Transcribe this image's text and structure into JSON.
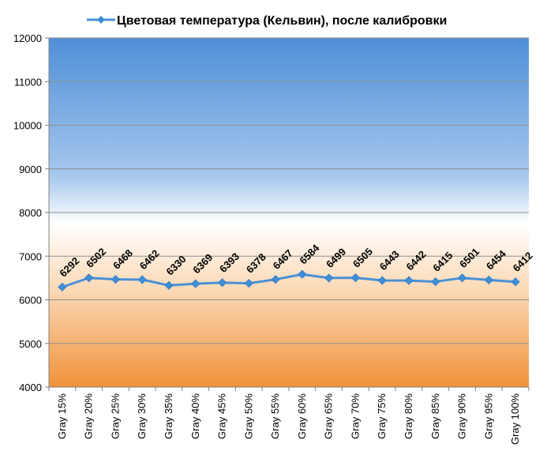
{
  "chart_data": {
    "type": "line",
    "categories": [
      "Gray 15%",
      "Gray 20%",
      "Gray 25%",
      "Gray 30%",
      "Gray 35%",
      "Gray 40%",
      "Gray 45%",
      "Gray 50%",
      "Gray 55%",
      "Gray 60%",
      "Gray 65%",
      "Gray 70%",
      "Gray 75%",
      "Gray 80%",
      "Gray 85%",
      "Gray 90%",
      "Gray 95%",
      "Gray 100%"
    ],
    "series": [
      {
        "name": "Цветовая температура (Кельвин), после калибровки",
        "values": [
          6292,
          6502,
          6468,
          6462,
          6330,
          6369,
          6393,
          6378,
          6467,
          6584,
          6499,
          6505,
          6443,
          6442,
          6415,
          6501,
          6454,
          6412
        ]
      }
    ],
    "ylim": [
      4000,
      12000
    ],
    "yticks": [
      4000,
      5000,
      6000,
      7000,
      8000,
      9000,
      10000,
      11000,
      12000
    ],
    "grid": true,
    "legend_position": "top",
    "colors": {
      "line": "#4a90d6",
      "marker": "#3d8fd8",
      "bg_top": "#4f8fd8",
      "bg_mid": "#ffffff",
      "bg_bottom": "#f0923a",
      "grid": "#8f8f8f"
    }
  }
}
